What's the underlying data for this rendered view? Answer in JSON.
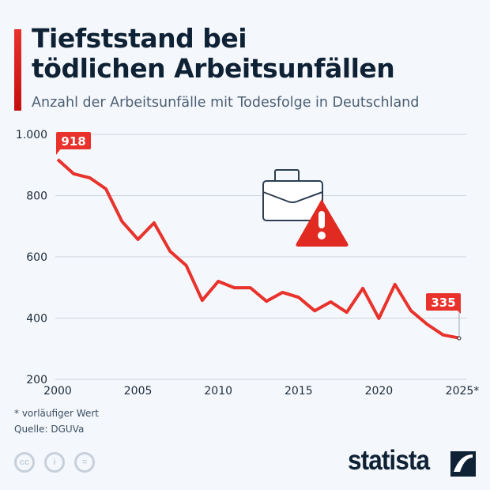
{
  "header": {
    "title_line1": "Tiefststand bei",
    "title_line2": "tödlichen Arbeitsunfällen",
    "subtitle": "Anzahl der Arbeitsunfälle mit Todesfolge in Deutschland"
  },
  "chart_data": {
    "type": "line",
    "x": [
      2000,
      2001,
      2002,
      2003,
      2004,
      2005,
      2006,
      2007,
      2008,
      2009,
      2010,
      2011,
      2012,
      2013,
      2014,
      2015,
      2016,
      2017,
      2018,
      2019,
      2020,
      2021,
      2022,
      2023,
      2024,
      2025
    ],
    "values": [
      918,
      871,
      858,
      822,
      716,
      657,
      711,
      618,
      572,
      458,
      520,
      499,
      499,
      455,
      484,
      468,
      424,
      453,
      419,
      497,
      399,
      510,
      424,
      380,
      345,
      335
    ],
    "ylim": [
      200,
      1000
    ],
    "yticks": [
      "200",
      "400",
      "600",
      "800",
      "1.000"
    ],
    "ytick_values": [
      200,
      400,
      600,
      800,
      1000
    ],
    "xticks": [
      "2000",
      "2005",
      "2010",
      "2015",
      "2020",
      "2025*"
    ],
    "xtick_values": [
      2000,
      2005,
      2010,
      2015,
      2020,
      2025
    ],
    "data_labels": {
      "first": "918",
      "last": "335"
    },
    "grid": true,
    "line_color": "#e8322b"
  },
  "footer": {
    "note": "* vorläufiger Wert",
    "source": "Quelle: DGUVa",
    "brand": "statista"
  },
  "icons": [
    "briefcase-icon",
    "warning-icon",
    "cc-icon",
    "by-icon",
    "nd-icon",
    "statista-logo-icon"
  ]
}
